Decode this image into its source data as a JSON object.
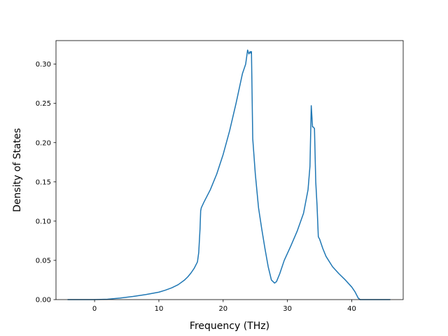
{
  "chart_data": {
    "type": "line",
    "xlabel": "Frequency (THz)",
    "ylabel": "Density of States",
    "xlim": [
      -6.0,
      48.0
    ],
    "ylim": [
      0.0,
      0.33
    ],
    "xticks": [
      0,
      10,
      20,
      30,
      40
    ],
    "yticks": [
      0.0,
      0.05,
      0.1,
      0.15,
      0.2,
      0.25,
      0.3
    ],
    "grid": false,
    "line_color": "#1f77b4",
    "series": [
      {
        "x": [
          -4.2,
          -2,
          0,
          2,
          4,
          6,
          8,
          10,
          11,
          12,
          13,
          14,
          14.5,
          15,
          15.5,
          16,
          16.2,
          16.4,
          16.5,
          16.6,
          17,
          18,
          19,
          20,
          21,
          22,
          23,
          23.5,
          23.8,
          24.0,
          24.2,
          24.3,
          24.4,
          24.6,
          25,
          25.5,
          26,
          26.5,
          27,
          27.5,
          28,
          28.3,
          28.8,
          29.5,
          30.5,
          31.5,
          32.5,
          33.2,
          33.5,
          33.7,
          33.9,
          34.0,
          34.2,
          34.4,
          34.6,
          34.8,
          35.0,
          35.5,
          36,
          37,
          38,
          39,
          40,
          40.5,
          41,
          41.3,
          41.5,
          42,
          44,
          46
        ],
        "y": [
          0.0,
          0.0,
          0.0,
          0.0005,
          0.002,
          0.004,
          0.0065,
          0.0095,
          0.012,
          0.015,
          0.019,
          0.025,
          0.029,
          0.034,
          0.04,
          0.048,
          0.06,
          0.09,
          0.113,
          0.117,
          0.124,
          0.14,
          0.16,
          0.185,
          0.215,
          0.25,
          0.288,
          0.3,
          0.318,
          0.313,
          0.316,
          0.314,
          0.316,
          0.205,
          0.16,
          0.117,
          0.09,
          0.065,
          0.042,
          0.025,
          0.021,
          0.023,
          0.033,
          0.05,
          0.068,
          0.087,
          0.11,
          0.14,
          0.17,
          0.247,
          0.22,
          0.22,
          0.218,
          0.15,
          0.12,
          0.08,
          0.077,
          0.065,
          0.055,
          0.042,
          0.033,
          0.025,
          0.016,
          0.01,
          0.002,
          0.0,
          0.0,
          0.0,
          0.0,
          0.0
        ]
      }
    ]
  }
}
